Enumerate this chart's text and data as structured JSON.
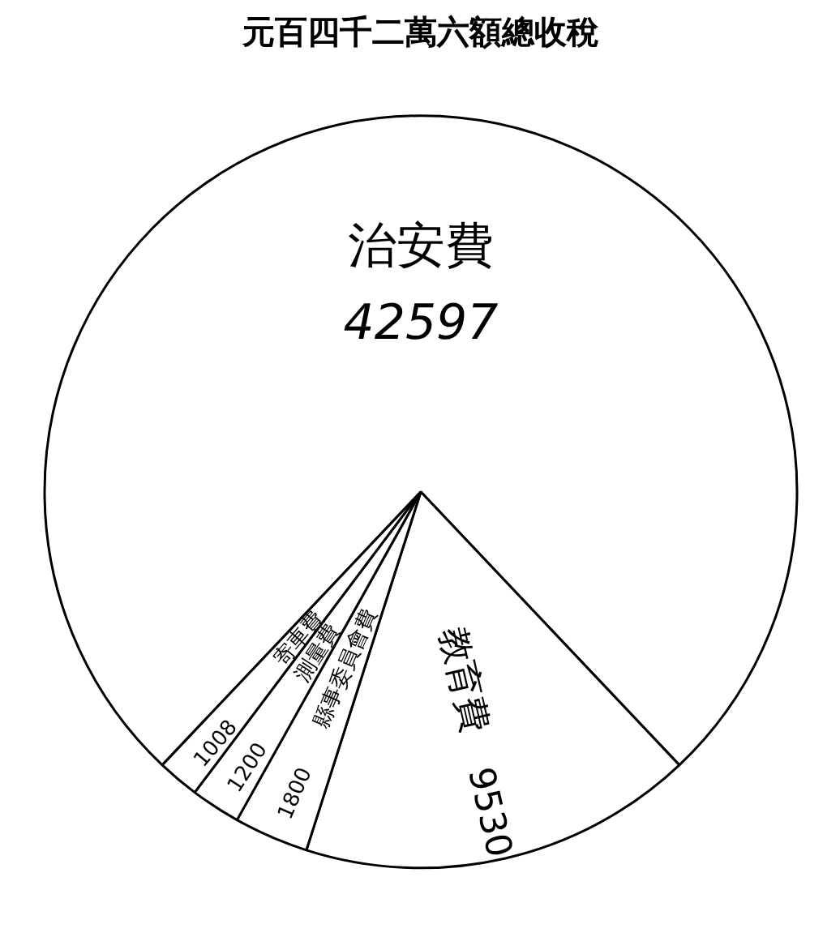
{
  "chart_data": {
    "type": "pie",
    "title": "元百四千二萬六額總收稅",
    "categories": [
      "治安費",
      "教育費",
      "縣事委員會費",
      "測量費",
      "寄車費"
    ],
    "values": [
      42597,
      9530,
      1800,
      1200,
      1008
    ],
    "colors": [
      "#ffffff",
      "#ffffff",
      "#ffffff",
      "#ffffff",
      "#ffffff"
    ],
    "data_labels": true
  }
}
